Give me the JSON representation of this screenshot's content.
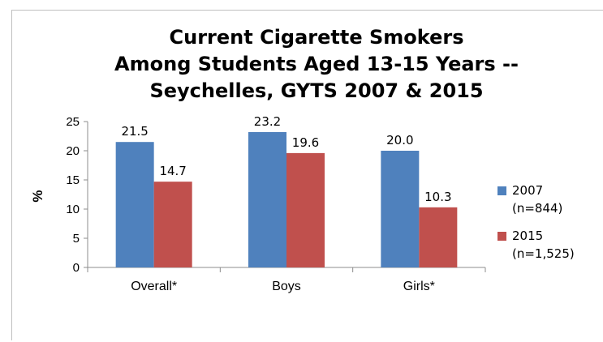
{
  "chart_data": {
    "type": "bar",
    "title_lines": [
      "Current Cigarette Smokers",
      "Among Students Aged 13-15 Years --",
      "Seychelles, GYTS 2007 & 2015"
    ],
    "ylabel": "%",
    "xlabel": "",
    "ylim": [
      0,
      25
    ],
    "yticks": [
      0,
      5,
      10,
      15,
      20,
      25
    ],
    "categories": [
      "Overall*",
      "Boys",
      "Girls*"
    ],
    "series": [
      {
        "name": "2007",
        "name_note": "(n=844)",
        "values": [
          21.5,
          23.2,
          20.0
        ],
        "value_labels": [
          "21.5",
          "23.2",
          "20.0"
        ],
        "color": "#4f81bd"
      },
      {
        "name": "2015",
        "name_note": "(n=1,525)",
        "values": [
          14.7,
          19.6,
          10.3
        ],
        "value_labels": [
          "14.7",
          "19.6",
          "10.3"
        ],
        "color": "#c0504d"
      }
    ],
    "grid": false,
    "legend_position": "right"
  }
}
